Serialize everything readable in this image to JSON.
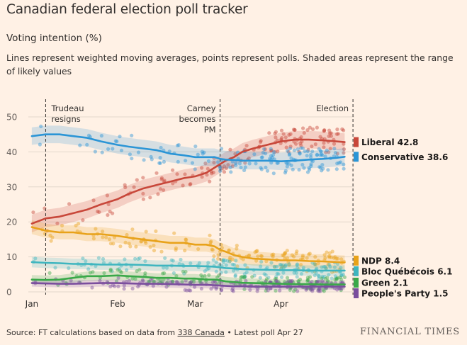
{
  "header": {
    "title": "Canadian federal election poll tracker",
    "subtitle": "Voting intention (%)",
    "description": "Lines represent weighted moving averages, points represent polls. Shaded areas represent the range of likely values"
  },
  "footer": {
    "source_prefix": "Source: FT calculations based on data from ",
    "source_link": "338 Canada",
    "source_suffix": " • Latest poll Apr 27",
    "brand": "FINANCIAL TIMES"
  },
  "chart_data": {
    "type": "line",
    "title": "Canadian federal election poll tracker",
    "ylabel": "Voting intention (%)",
    "xlabel": "",
    "ylim": [
      0,
      50
    ],
    "yticks": [
      0,
      10,
      20,
      30,
      40,
      50
    ],
    "x_range_days": [
      -1,
      117
    ],
    "xtick_labels": [
      {
        "label": "Jan",
        "day": 0
      },
      {
        "label": "Feb",
        "day": 31
      },
      {
        "label": "Mar",
        "day": 59
      },
      {
        "label": "Apr",
        "day": 90
      }
    ],
    "annotations": [
      {
        "day": 5,
        "lines": [
          "Trudeau",
          "resigns"
        ],
        "anchor": "start"
      },
      {
        "day": 68,
        "lines": [
          "Carney",
          "becomes",
          "PM"
        ],
        "anchor": "end"
      },
      {
        "day": 116,
        "lines": [
          "Election"
        ],
        "anchor": "end"
      }
    ],
    "series": [
      {
        "name": "Liberal",
        "value_label": "42.8",
        "color": "#c8473a",
        "band_width": 2.5,
        "x": [
          0,
          5,
          10,
          15,
          20,
          25,
          31,
          35,
          40,
          45,
          50,
          55,
          59,
          63,
          66,
          68,
          70,
          73,
          76,
          80,
          85,
          90,
          95,
          100,
          105,
          110,
          113
        ],
        "values": [
          19.5,
          21,
          21.5,
          22.5,
          23.5,
          25,
          26.5,
          28,
          29.5,
          30.5,
          31.5,
          32.5,
          33,
          34,
          35.5,
          36.5,
          37.5,
          38.5,
          40,
          41,
          42,
          43,
          43.5,
          43.5,
          43.3,
          43,
          42.8
        ]
      },
      {
        "name": "Conservative",
        "value_label": "38.6",
        "color": "#2b95d6",
        "band_width": 2.5,
        "x": [
          0,
          5,
          10,
          15,
          20,
          25,
          31,
          35,
          40,
          45,
          50,
          55,
          59,
          63,
          66,
          68,
          70,
          73,
          76,
          80,
          85,
          90,
          95,
          100,
          105,
          110,
          113
        ],
        "values": [
          44.5,
          45,
          45,
          44.5,
          44,
          43,
          42,
          41.5,
          41,
          40.5,
          39.5,
          39,
          38.5,
          38.5,
          38.5,
          38,
          37.8,
          37.7,
          37.5,
          37.5,
          37.5,
          37.3,
          37.5,
          37.8,
          38,
          38.3,
          38.6
        ]
      },
      {
        "name": "NDP",
        "value_label": "8.4",
        "color": "#e8a21a",
        "band_width": 2,
        "x": [
          0,
          5,
          10,
          15,
          20,
          25,
          31,
          35,
          40,
          45,
          50,
          55,
          59,
          63,
          66,
          68,
          70,
          73,
          76,
          80,
          85,
          90,
          95,
          100,
          105,
          110,
          113
        ],
        "values": [
          18.5,
          17.5,
          17,
          17,
          16.5,
          16.5,
          16,
          15.5,
          15,
          14.5,
          14,
          14,
          13.5,
          13.5,
          13,
          12,
          11.5,
          10.5,
          10,
          9.5,
          9.3,
          9,
          9,
          8.8,
          8.7,
          8.5,
          8.4
        ]
      },
      {
        "name": "Bloc Québécois",
        "value_label": "6.1",
        "color": "#3eb5bf",
        "band_width": 1.5,
        "x": [
          0,
          5,
          10,
          15,
          20,
          25,
          31,
          35,
          40,
          45,
          50,
          55,
          59,
          63,
          66,
          68,
          70,
          73,
          76,
          80,
          85,
          90,
          95,
          100,
          105,
          110,
          113
        ],
        "values": [
          8.5,
          8.3,
          8.2,
          8,
          8,
          7.8,
          7.8,
          7.8,
          7.7,
          7.5,
          7.5,
          7.4,
          7.4,
          7.3,
          7.2,
          7,
          6.8,
          6.7,
          6.5,
          6.4,
          6.3,
          6.2,
          6.2,
          6.1,
          6.1,
          6.1,
          6.1
        ]
      },
      {
        "name": "Green",
        "value_label": "2.1",
        "color": "#3aa849",
        "band_width": 1.3,
        "x": [
          0,
          5,
          10,
          15,
          20,
          25,
          31,
          35,
          40,
          45,
          50,
          55,
          59,
          63,
          66,
          68,
          70,
          73,
          76,
          80,
          85,
          90,
          95,
          100,
          105,
          110,
          113
        ],
        "values": [
          3.5,
          3.4,
          3.5,
          4,
          4.5,
          4.5,
          4.7,
          4.5,
          4.3,
          4,
          4,
          3.8,
          3.8,
          3.5,
          3.5,
          3.3,
          3,
          2.8,
          2.6,
          2.5,
          2.4,
          2.3,
          2.2,
          2.2,
          2.1,
          2.1,
          2.1
        ]
      },
      {
        "name": "People's Party",
        "value_label": "1.5",
        "color": "#7b4e9e",
        "band_width": 1,
        "x": [
          0,
          5,
          10,
          15,
          20,
          25,
          31,
          35,
          40,
          45,
          50,
          55,
          59,
          63,
          66,
          68,
          70,
          73,
          76,
          80,
          85,
          90,
          95,
          100,
          105,
          110,
          113
        ],
        "values": [
          2.5,
          2.4,
          2.3,
          2.3,
          2.4,
          2.5,
          2.5,
          2.4,
          2.3,
          2.3,
          2.2,
          2.1,
          2,
          2,
          1.9,
          1.8,
          1.7,
          1.6,
          1.6,
          1.5,
          1.5,
          1.5,
          1.5,
          1.5,
          1.5,
          1.5,
          1.5
        ]
      }
    ]
  }
}
